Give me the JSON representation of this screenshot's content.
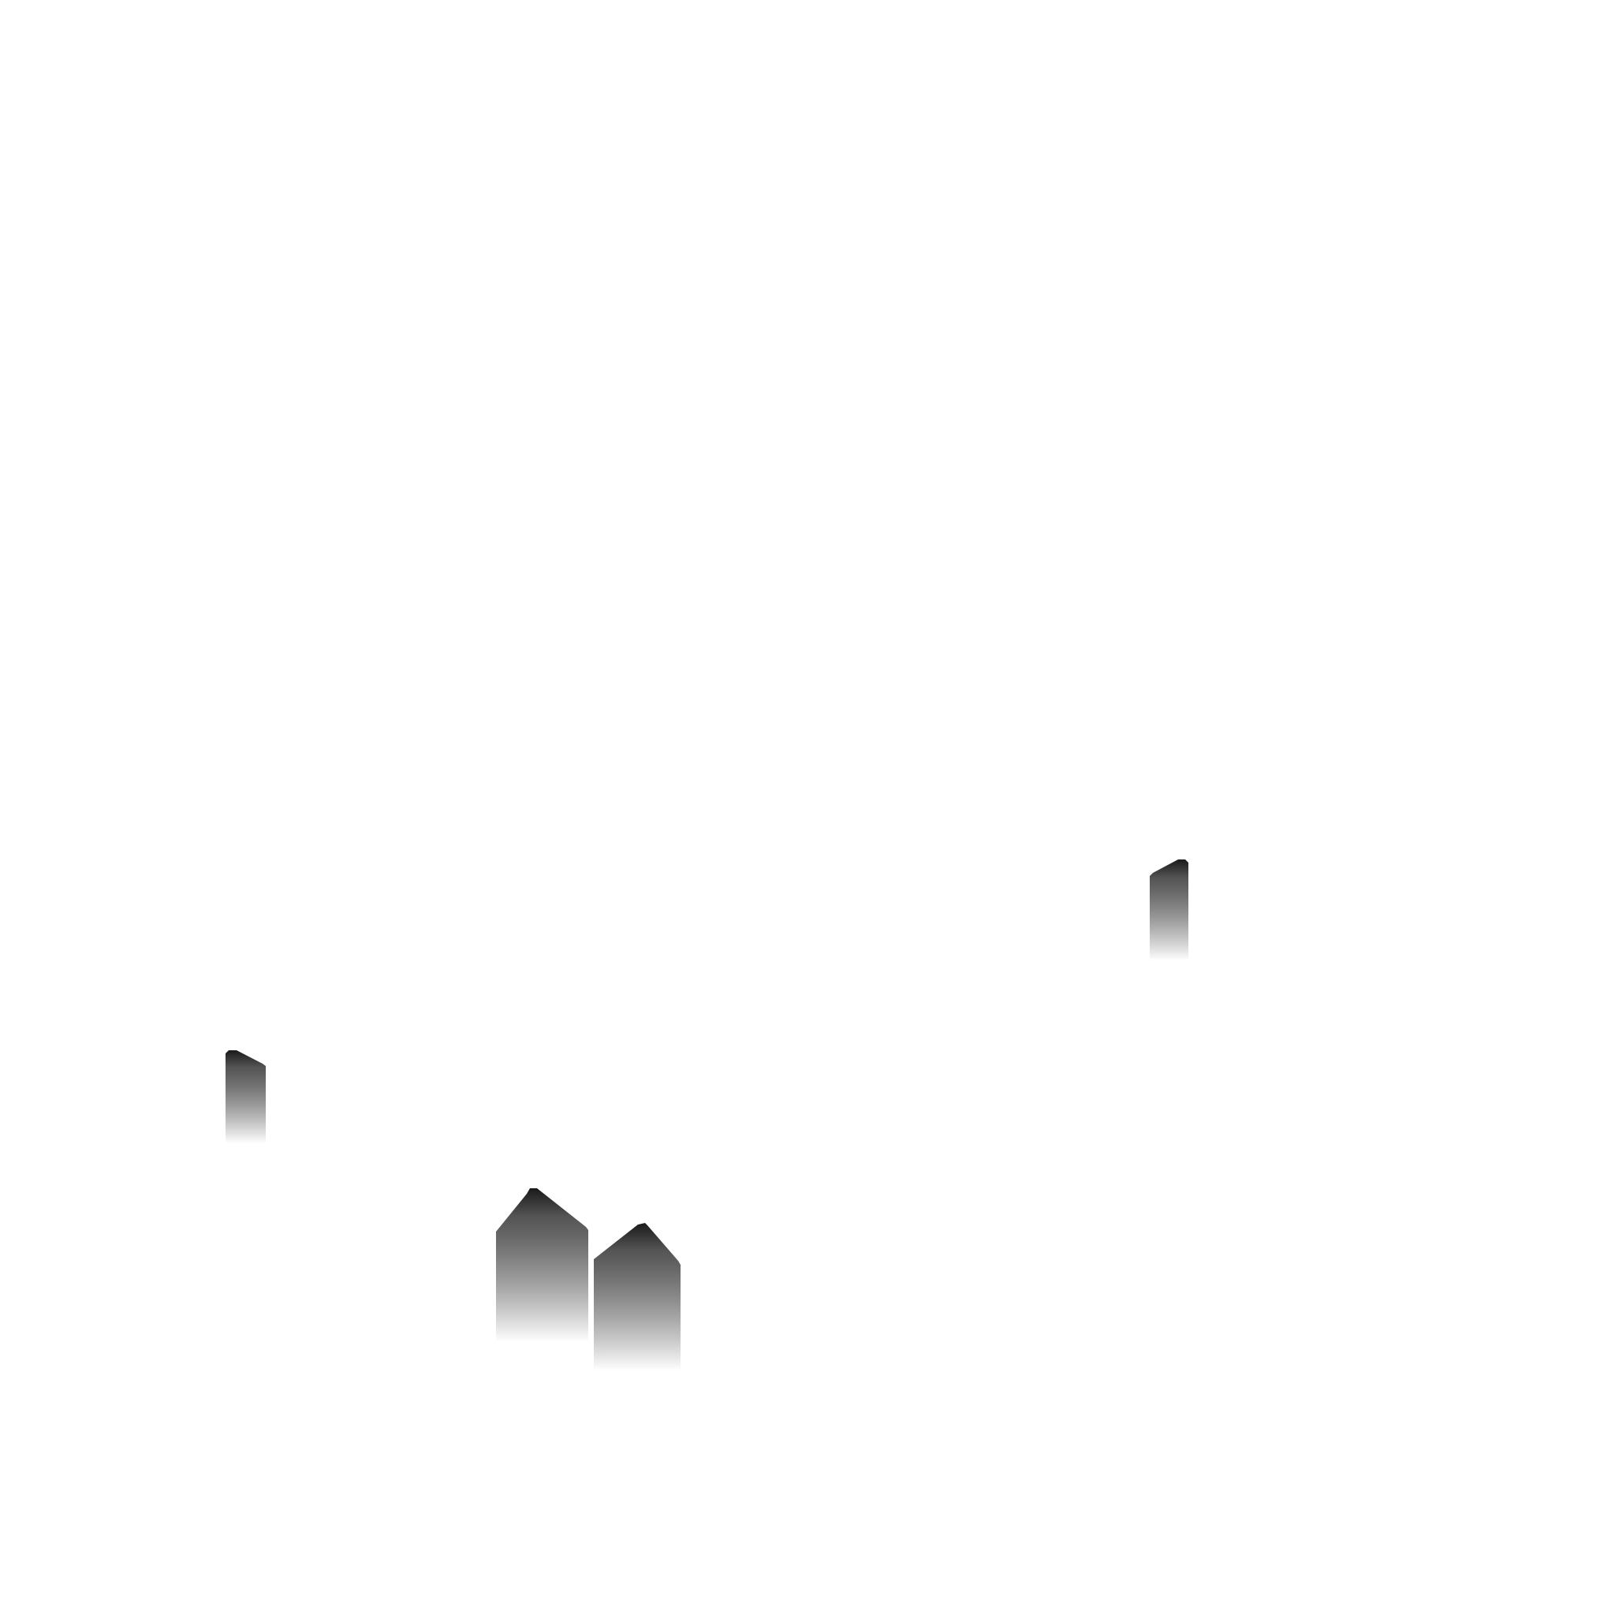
{
  "scene": {
    "background_color": "#ffffff",
    "shape_top_color": "#1a1a1a",
    "shape_fade_color": "#ffffff",
    "shapes": [
      {
        "name": "gradient-pillar-left",
        "kind": "pillar-sloped-right"
      },
      {
        "name": "gradient-house-tall",
        "kind": "house-gable"
      },
      {
        "name": "gradient-house-short",
        "kind": "house-gable"
      },
      {
        "name": "gradient-pillar-right",
        "kind": "pillar-sloped-left"
      }
    ]
  }
}
